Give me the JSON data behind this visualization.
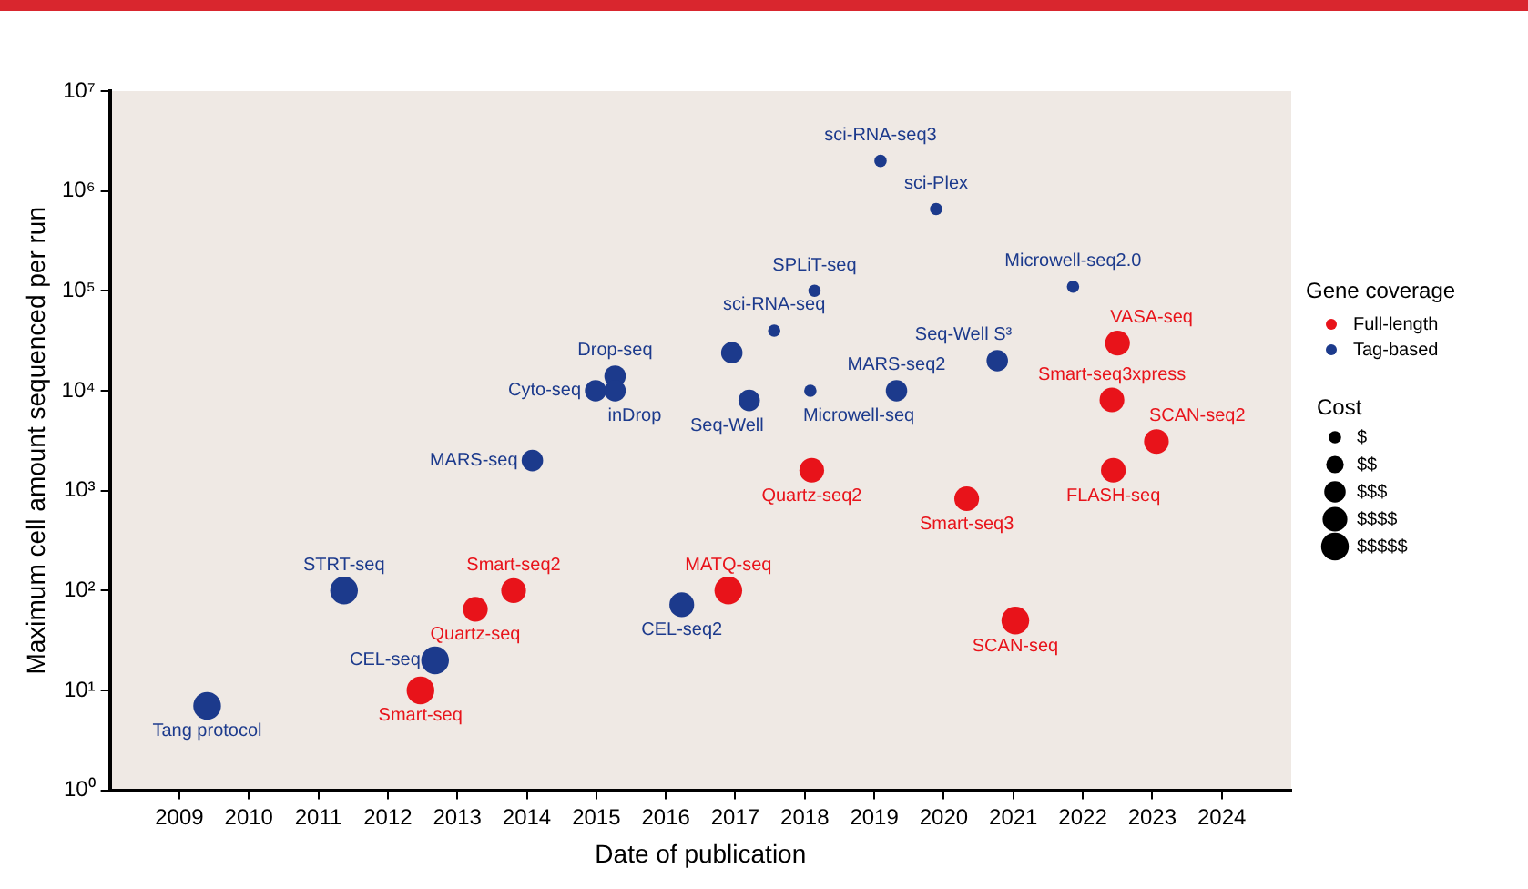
{
  "chart_data": {
    "type": "bubble",
    "xlabel": "Date of publication",
    "ylabel": "Maximum cell amount sequenced per run",
    "legend_title": "Gene coverage",
    "legend": "right",
    "log": "y",
    "grid": false,
    "xlim": [
      2008,
      2025
    ],
    "xticks": [
      2009,
      2010,
      2011,
      2012,
      2013,
      2014,
      2015,
      2016,
      2017,
      2018,
      2019,
      2020,
      2021,
      2022,
      2023,
      2024
    ],
    "ylim": [
      1,
      10000000
    ],
    "yticks": [
      {
        "value": 1,
        "label": "10⁰"
      },
      {
        "value": 10,
        "label": "10¹"
      },
      {
        "value": 100,
        "label": "10²"
      },
      {
        "value": 1000,
        "label": "10³"
      },
      {
        "value": 10000,
        "label": "10⁴"
      },
      {
        "value": 100000,
        "label": "10⁵"
      },
      {
        "value": 1000000,
        "label": "10⁶"
      },
      {
        "value": 10000000,
        "label": "10⁷"
      }
    ],
    "size_legend": [
      {
        "value": 1,
        "label": "$"
      },
      {
        "value": 2,
        "label": "$$"
      },
      {
        "value": 3,
        "label": "$$$"
      },
      {
        "value": 4,
        "label": "$$$$"
      },
      {
        "value": 5,
        "label": "$$$$$"
      }
    ],
    "series": [
      {
        "name": "Full-length",
        "color": "#e8131a",
        "x": [
          2012.47,
          2013.26,
          2013.81,
          2016.9,
          2018.1,
          2020.33,
          2021.03,
          2022.44,
          2023.06,
          2022.5,
          2022.42
        ],
        "values": [
          10,
          65,
          100,
          100,
          1600,
          830,
          50,
          1600,
          3100,
          30000,
          8100
        ],
        "sizes": [
          5,
          4,
          4,
          5,
          4,
          4,
          5,
          4,
          4,
          4,
          4
        ]
      },
      {
        "name": "Tag-based",
        "color": "#1c3a8c",
        "x": [
          2009.4,
          2011.37,
          2012.68,
          2014.08,
          2016.23,
          2014.99,
          2015.27,
          2015.27,
          2016.95,
          2017.2,
          2017.56,
          2018.14,
          2018.08,
          2019.09,
          2019.89,
          2019.32,
          2020.77,
          2021.86
        ],
        "values": [
          7,
          100,
          20,
          2000,
          72,
          10000,
          14000,
          10000,
          24000,
          8000,
          40000,
          100000,
          10000,
          2000000,
          660000,
          10000,
          20000,
          110000
        ],
        "sizes": [
          5,
          5,
          5,
          3,
          4,
          3,
          3,
          3,
          3,
          3,
          1,
          1,
          1,
          1,
          1,
          3,
          3,
          1
        ]
      }
    ],
    "annotations": [
      {
        "text": "Smart-seq",
        "x": 2012.47,
        "y": 10
      },
      {
        "text": "Quartz-seq",
        "x": 2013.26,
        "y": 65
      },
      {
        "text": "Smart-seq2",
        "x": 2013.81,
        "y": 100
      },
      {
        "text": "MATQ-seq",
        "x": 2016.9,
        "y": 100
      },
      {
        "text": "Quartz-seq2",
        "x": 2018.1,
        "y": 1600
      },
      {
        "text": "Smart-seq3",
        "x": 2020.33,
        "y": 830
      },
      {
        "text": "SCAN-seq",
        "x": 2021.03,
        "y": 50
      },
      {
        "text": "FLASH-seq",
        "x": 2022.44,
        "y": 1600
      },
      {
        "text": "SCAN-seq2",
        "x": 2023.06,
        "y": 3100
      },
      {
        "text": "VASA-seq",
        "x": 2022.5,
        "y": 30000
      },
      {
        "text": "Smart-seq3xpress",
        "x": 2022.42,
        "y": 8100
      },
      {
        "text": "Tang protocol",
        "x": 2009.4,
        "y": 7
      },
      {
        "text": "STRT-seq",
        "x": 2011.37,
        "y": 100
      },
      {
        "text": "CEL-seq",
        "x": 2012.68,
        "y": 20
      },
      {
        "text": "MARS-seq",
        "x": 2014.08,
        "y": 2000
      },
      {
        "text": "CEL-seq2",
        "x": 2016.23,
        "y": 72
      },
      {
        "text": "Cyto-seq",
        "x": 2014.99,
        "y": 10000
      },
      {
        "text": "Drop-seq",
        "x": 2015.27,
        "y": 14000
      },
      {
        "text": "inDrop",
        "x": 2015.27,
        "y": 10000
      },
      {
        "text": "Seq-Well",
        "x": 2017.2,
        "y": 8000
      },
      {
        "text": "sci-RNA-seq",
        "x": 2017.56,
        "y": 40000
      },
      {
        "text": "SPLiT-seq",
        "x": 2018.14,
        "y": 100000
      },
      {
        "text": "Microwell-seq",
        "x": 2018.08,
        "y": 10000
      },
      {
        "text": "sci-RNA-seq3",
        "x": 2019.09,
        "y": 2000000
      },
      {
        "text": "sci-Plex",
        "x": 2019.89,
        "y": 660000
      },
      {
        "text": "MARS-seq2",
        "x": 2019.32,
        "y": 10000
      },
      {
        "text": "Seq-Well S³",
        "x": 2020.77,
        "y": 20000
      },
      {
        "text": "Microwell-seq2.0",
        "x": 2021.86,
        "y": 110000
      },
      "Cost"
    ]
  }
}
